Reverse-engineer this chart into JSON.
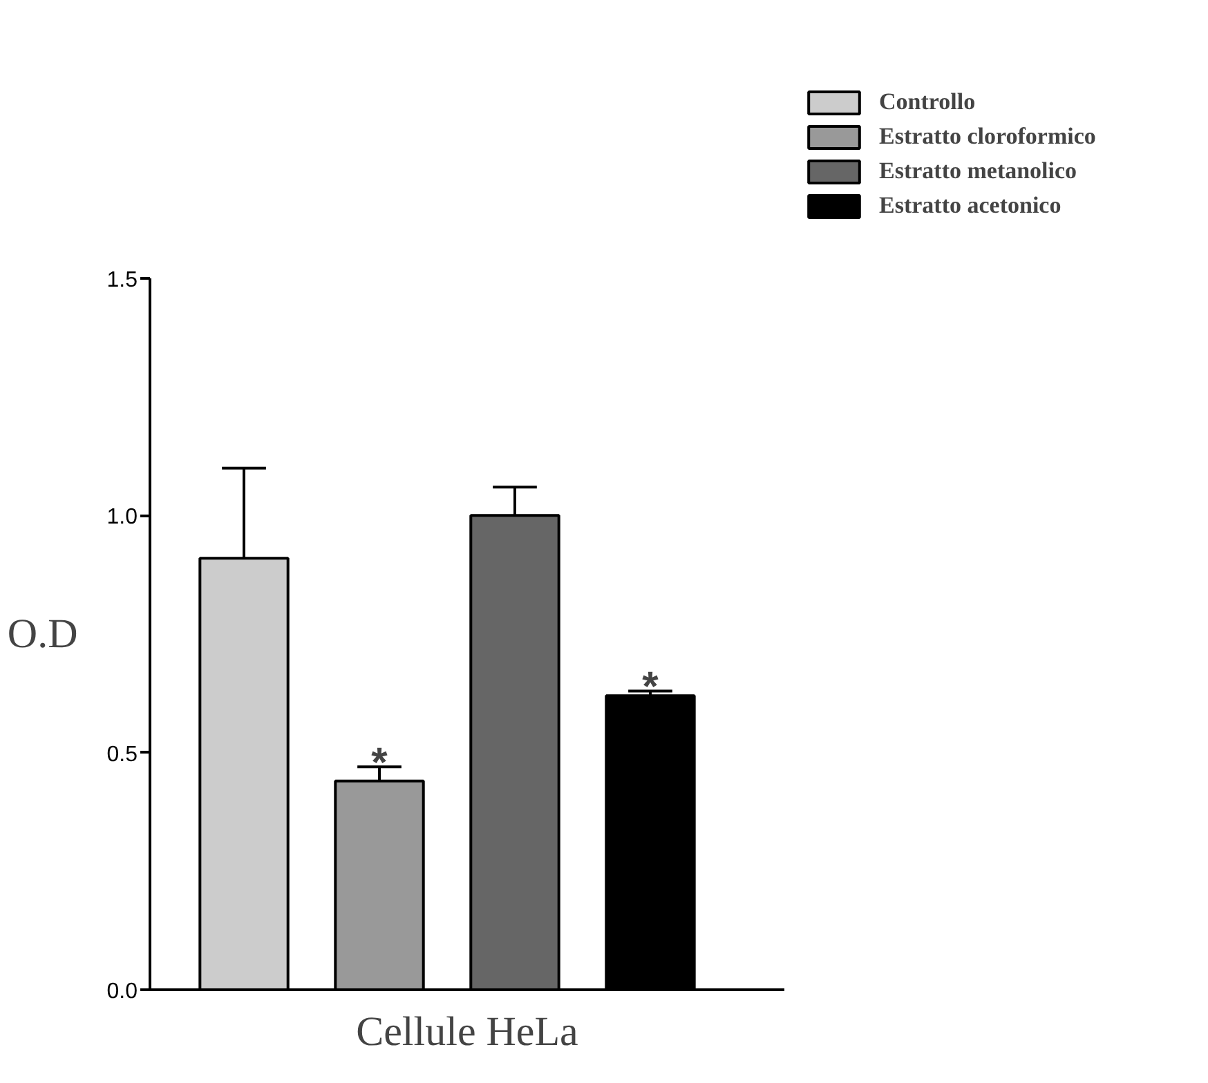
{
  "chart_data": {
    "type": "bar",
    "categories": [
      null
    ],
    "xlabel": "Cellule HeLa",
    "ylabel": "O.D",
    "series": [
      {
        "name": "Controllo",
        "color": "#cccccc",
        "values": [
          0.91
        ],
        "errors": [
          [
            0.91,
            1.1
          ]
        ]
      },
      {
        "name": "Estratto cloroformico",
        "color": "#999999",
        "values": [
          0.44
        ],
        "errors": [
          [
            0.44,
            0.47
          ]
        ]
      },
      {
        "name": "Estratto metanolico",
        "color": "#666666",
        "values": [
          1.0
        ],
        "errors": [
          [
            1.0,
            1.06
          ]
        ]
      },
      {
        "name": "Estratto acetonico",
        "color": "#000000",
        "values": [
          0.62
        ],
        "errors": [
          [
            0.62,
            0.63
          ]
        ]
      }
    ],
    "ylim": [
      0,
      1.5
    ],
    "yticks": [
      {
        "value": 0,
        "label": "0.0"
      },
      {
        "value": 0.5,
        "label": "0.5"
      },
      {
        "value": 1.0,
        "label": "1.0"
      },
      {
        "value": 1.5,
        "label": "1.5"
      }
    ],
    "annotations": [
      {
        "text": "*",
        "y": 0.47
      },
      {
        "text": "*",
        "y": 0.63
      }
    ],
    "legend": "top right",
    "grid": false
  }
}
